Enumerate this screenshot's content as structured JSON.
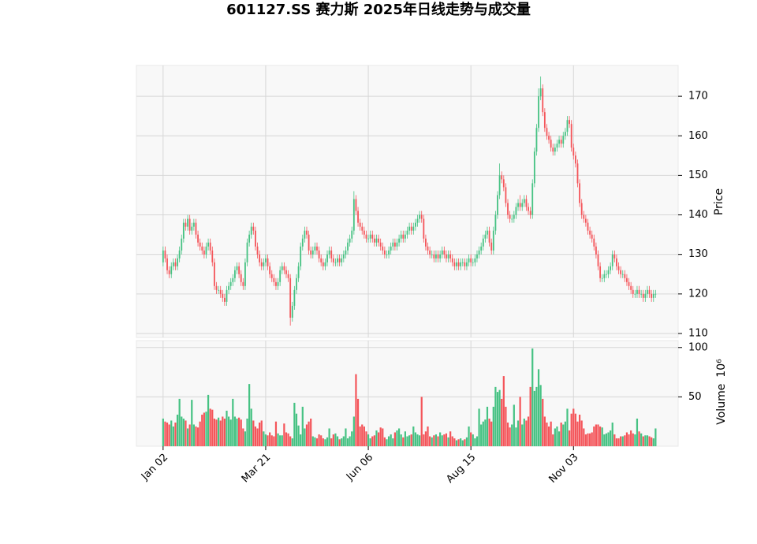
{
  "chart_data": {
    "type": "candlestick",
    "title": "601127.SS 赛力斯 2025年日线走势与成交量",
    "ylabel": "Price",
    "volume_label": "Volume",
    "volume_scale": "10⁶",
    "up_color": "#46c283",
    "down_color": "#f4555a",
    "grid": true,
    "xlim": [
      -13,
      251
    ],
    "xticks": [
      {
        "value": 0,
        "label": "Jan 02"
      },
      {
        "value": 50,
        "label": "Mar 21"
      },
      {
        "value": 100,
        "label": "Jun 06"
      },
      {
        "value": 150,
        "label": "Aug 15"
      },
      {
        "value": 200,
        "label": "Nov 03"
      }
    ],
    "ylim": [
      109,
      177.8
    ],
    "yticks": [
      110,
      120,
      130,
      140,
      150,
      160,
      170
    ],
    "volume_ylim": [
      0,
      107
    ],
    "volume_yticks": [
      50,
      100
    ],
    "open": [
      128,
      131,
      129,
      126,
      125,
      127,
      128,
      127,
      129,
      131,
      134,
      138,
      137,
      139,
      136,
      137,
      138,
      135,
      133,
      132,
      131,
      130,
      132,
      133,
      131,
      128,
      122,
      121,
      121,
      120,
      119,
      118,
      121,
      122,
      123,
      124,
      126,
      127,
      125,
      123,
      122,
      128,
      133,
      135,
      137,
      136,
      132,
      130,
      128,
      127,
      128,
      129,
      127,
      125,
      124,
      123,
      122,
      123,
      126,
      127,
      126,
      125,
      124,
      114,
      117,
      121,
      124,
      127,
      132,
      134,
      136,
      135,
      131,
      130,
      131,
      132,
      131,
      129,
      128,
      127,
      128,
      130,
      131,
      129,
      128,
      128,
      129,
      128,
      129,
      130,
      131,
      133,
      134,
      136,
      144,
      141,
      138,
      137,
      136,
      135,
      134,
      134,
      135,
      134,
      133,
      134,
      133,
      132,
      131,
      130,
      130,
      131,
      132,
      133,
      132,
      133,
      134,
      135,
      134,
      135,
      136,
      137,
      136,
      137,
      138,
      139,
      140,
      139,
      134,
      132,
      131,
      130,
      130,
      129,
      130,
      129,
      130,
      131,
      130,
      129,
      130,
      129,
      128,
      127,
      128,
      127,
      128,
      128,
      127,
      128,
      129,
      128,
      128,
      129,
      130,
      131,
      132,
      134,
      135,
      136,
      133,
      131,
      136,
      140,
      145,
      150,
      149,
      147,
      143,
      140,
      139,
      139,
      140,
      142,
      143,
      142,
      143,
      144,
      142,
      141,
      140,
      148,
      156,
      162,
      170,
      172,
      166,
      162,
      160,
      159,
      157,
      156,
      157,
      158,
      159,
      158,
      160,
      161,
      164,
      163,
      157,
      155,
      153,
      148,
      143,
      140,
      139,
      138,
      136,
      135,
      134,
      132,
      130,
      127,
      124,
      124,
      125,
      125,
      126,
      127,
      130,
      129,
      127,
      126,
      125,
      125,
      124,
      123,
      122,
      121,
      120,
      120,
      121,
      120,
      120,
      119,
      120,
      121,
      120,
      119,
      120
    ],
    "high": [
      132,
      132,
      130,
      127,
      128,
      129,
      129,
      130,
      132,
      135,
      139,
      139,
      140,
      140,
      138,
      139,
      139,
      136,
      134,
      133,
      132,
      133,
      134,
      134,
      132,
      129,
      123,
      122,
      122,
      121,
      120,
      122,
      123,
      124,
      125,
      127,
      128,
      128,
      126,
      124,
      129,
      134,
      136,
      138,
      138,
      137,
      133,
      131,
      129,
      129,
      130,
      130,
      128,
      126,
      125,
      124,
      124,
      127,
      128,
      128,
      127,
      126,
      125,
      118,
      122,
      125,
      128,
      133,
      135,
      137,
      137,
      136,
      132,
      132,
      133,
      133,
      132,
      130,
      129,
      129,
      131,
      132,
      132,
      130,
      129,
      130,
      130,
      130,
      131,
      132,
      134,
      135,
      137,
      146,
      145,
      142,
      139,
      138,
      137,
      136,
      135,
      136,
      136,
      135,
      135,
      135,
      134,
      133,
      132,
      131,
      132,
      133,
      134,
      134,
      134,
      135,
      136,
      136,
      136,
      137,
      138,
      138,
      138,
      139,
      140,
      141,
      141,
      140,
      135,
      133,
      132,
      131,
      131,
      131,
      131,
      131,
      132,
      132,
      131,
      131,
      131,
      130,
      129,
      129,
      129,
      129,
      129,
      129,
      129,
      130,
      130,
      129,
      130,
      131,
      132,
      133,
      135,
      136,
      137,
      137,
      134,
      137,
      141,
      146,
      153,
      151,
      150,
      148,
      144,
      141,
      140,
      141,
      143,
      144,
      145,
      144,
      145,
      145,
      143,
      142,
      149,
      157,
      163,
      172,
      175,
      173,
      167,
      163,
      161,
      160,
      158,
      158,
      159,
      160,
      160,
      161,
      162,
      165,
      165,
      164,
      158,
      156,
      154,
      149,
      144,
      141,
      140,
      139,
      137,
      136,
      135,
      133,
      131,
      128,
      125,
      126,
      126,
      127,
      128,
      131,
      131,
      130,
      128,
      127,
      126,
      126,
      125,
      124,
      123,
      122,
      121,
      122,
      122,
      121,
      121,
      121,
      122,
      122,
      121,
      121,
      121
    ],
    "low": [
      127,
      128,
      125,
      124,
      124,
      126,
      126,
      126,
      128,
      130,
      133,
      136,
      136,
      135,
      135,
      136,
      134,
      132,
      131,
      130,
      129,
      129,
      131,
      130,
      127,
      121,
      120,
      120,
      119,
      118,
      117,
      117,
      120,
      121,
      122,
      123,
      125,
      124,
      122,
      121,
      121,
      127,
      132,
      134,
      135,
      131,
      129,
      127,
      126,
      126,
      127,
      126,
      124,
      123,
      122,
      121,
      121,
      122,
      125,
      125,
      124,
      123,
      112,
      113,
      116,
      120,
      123,
      126,
      131,
      133,
      134,
      130,
      129,
      129,
      130,
      130,
      128,
      127,
      126,
      126,
      127,
      129,
      128,
      127,
      127,
      127,
      127,
      127,
      128,
      129,
      130,
      132,
      133,
      135,
      140,
      137,
      136,
      135,
      134,
      133,
      133,
      133,
      133,
      132,
      132,
      132,
      131,
      130,
      129,
      129,
      129,
      130,
      131,
      131,
      131,
      132,
      133,
      133,
      133,
      134,
      135,
      135,
      135,
      136,
      137,
      138,
      138,
      133,
      131,
      130,
      129,
      129,
      128,
      128,
      128,
      128,
      129,
      129,
      128,
      128,
      128,
      127,
      126,
      126,
      126,
      126,
      127,
      126,
      126,
      127,
      127,
      127,
      127,
      128,
      129,
      130,
      131,
      133,
      134,
      132,
      130,
      130,
      135,
      139,
      144,
      148,
      146,
      142,
      139,
      138,
      138,
      138,
      139,
      141,
      141,
      141,
      142,
      141,
      140,
      139,
      139,
      147,
      155,
      161,
      169,
      165,
      161,
      159,
      158,
      156,
      155,
      155,
      156,
      157,
      157,
      157,
      159,
      160,
      162,
      156,
      154,
      152,
      147,
      142,
      139,
      138,
      137,
      135,
      134,
      133,
      131,
      129,
      126,
      123,
      123,
      123,
      124,
      124,
      125,
      126,
      128,
      126,
      125,
      124,
      124,
      123,
      122,
      121,
      120,
      119,
      119,
      119,
      119,
      119,
      118,
      118,
      119,
      119,
      118,
      118,
      119
    ],
    "close": [
      131,
      129,
      126,
      125,
      127,
      128,
      127,
      129,
      131,
      134,
      138,
      137,
      139,
      136,
      137,
      138,
      135,
      133,
      132,
      131,
      130,
      132,
      133,
      131,
      128,
      122,
      121,
      121,
      120,
      119,
      118,
      121,
      122,
      123,
      124,
      126,
      127,
      125,
      123,
      122,
      128,
      133,
      135,
      137,
      136,
      132,
      130,
      128,
      127,
      128,
      129,
      127,
      125,
      124,
      123,
      122,
      123,
      126,
      127,
      126,
      125,
      124,
      114,
      117,
      121,
      124,
      127,
      132,
      134,
      136,
      135,
      131,
      130,
      131,
      132,
      131,
      129,
      128,
      127,
      128,
      130,
      131,
      129,
      128,
      128,
      129,
      128,
      129,
      130,
      131,
      133,
      134,
      136,
      144,
      141,
      138,
      137,
      136,
      135,
      134,
      134,
      135,
      134,
      133,
      134,
      133,
      132,
      131,
      130,
      130,
      131,
      132,
      133,
      132,
      133,
      134,
      135,
      134,
      135,
      136,
      137,
      136,
      137,
      138,
      139,
      140,
      139,
      134,
      132,
      131,
      130,
      130,
      129,
      130,
      129,
      130,
      131,
      130,
      129,
      130,
      129,
      128,
      127,
      128,
      127,
      128,
      128,
      127,
      128,
      129,
      128,
      128,
      129,
      130,
      131,
      132,
      134,
      135,
      136,
      133,
      131,
      136,
      140,
      145,
      150,
      149,
      147,
      143,
      140,
      139,
      139,
      140,
      142,
      143,
      142,
      143,
      144,
      142,
      141,
      140,
      148,
      156,
      162,
      170,
      172,
      166,
      162,
      160,
      159,
      157,
      156,
      157,
      158,
      159,
      158,
      160,
      161,
      164,
      163,
      157,
      155,
      153,
      148,
      143,
      140,
      139,
      138,
      136,
      135,
      134,
      132,
      130,
      127,
      124,
      124,
      125,
      125,
      126,
      127,
      130,
      129,
      127,
      126,
      125,
      125,
      124,
      123,
      122,
      121,
      120,
      120,
      121,
      120,
      120,
      119,
      120,
      121,
      120,
      119,
      120,
      120
    ],
    "volume": [
      28,
      25,
      24,
      22,
      26,
      20,
      24,
      32,
      48,
      30,
      28,
      26,
      18,
      22,
      47,
      22,
      20,
      19,
      25,
      32,
      34,
      35,
      52,
      38,
      37,
      28,
      27,
      29,
      26,
      30,
      28,
      36,
      30,
      27,
      48,
      30,
      28,
      29,
      27,
      18,
      15,
      28,
      63,
      38,
      26,
      20,
      18,
      24,
      26,
      15,
      12,
      11,
      14,
      11,
      10,
      25,
      13,
      11,
      11,
      23,
      14,
      13,
      10,
      8,
      44,
      33,
      21,
      12,
      40,
      18,
      22,
      25,
      28,
      10,
      9,
      8,
      12,
      11,
      8,
      7,
      9,
      18,
      8,
      12,
      13,
      10,
      7,
      8,
      10,
      18,
      8,
      10,
      15,
      30,
      73,
      48,
      20,
      22,
      20,
      15,
      12,
      8,
      10,
      11,
      16,
      14,
      19,
      18,
      9,
      7,
      10,
      12,
      8,
      14,
      16,
      18,
      12,
      9,
      15,
      10,
      11,
      12,
      20,
      14,
      12,
      11,
      50,
      12,
      15,
      20,
      10,
      9,
      11,
      12,
      10,
      14,
      11,
      12,
      13,
      9,
      15,
      10,
      8,
      6,
      7,
      8,
      6,
      7,
      9,
      20,
      14,
      12,
      8,
      10,
      38,
      22,
      25,
      27,
      40,
      28,
      25,
      40,
      60,
      55,
      57,
      48,
      71,
      40,
      24,
      19,
      22,
      42,
      19,
      26,
      50,
      22,
      28,
      26,
      30,
      60,
      99,
      56,
      60,
      78,
      62,
      48,
      30,
      24,
      20,
      25,
      12,
      18,
      20,
      15,
      24,
      22,
      25,
      38,
      16,
      33,
      38,
      33,
      25,
      32,
      26,
      18,
      12,
      13,
      13,
      14,
      20,
      22,
      22,
      20,
      19,
      12,
      13,
      14,
      16,
      24,
      12,
      8,
      8,
      10,
      10,
      11,
      14,
      12,
      16,
      13,
      12,
      28,
      15,
      13,
      10,
      11,
      11,
      10,
      9,
      8,
      18
    ]
  }
}
